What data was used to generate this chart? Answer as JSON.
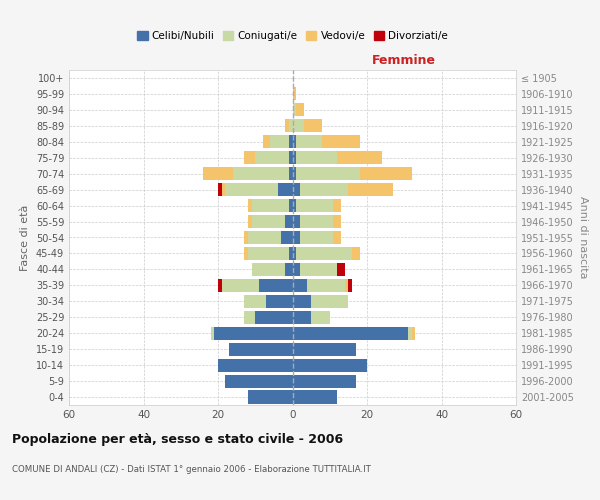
{
  "age_groups": [
    "0-4",
    "5-9",
    "10-14",
    "15-19",
    "20-24",
    "25-29",
    "30-34",
    "35-39",
    "40-44",
    "45-49",
    "50-54",
    "55-59",
    "60-64",
    "65-69",
    "70-74",
    "75-79",
    "80-84",
    "85-89",
    "90-94",
    "95-99",
    "100+"
  ],
  "birth_years": [
    "2001-2005",
    "1996-2000",
    "1991-1995",
    "1986-1990",
    "1981-1985",
    "1976-1980",
    "1971-1975",
    "1966-1970",
    "1961-1965",
    "1956-1960",
    "1951-1955",
    "1946-1950",
    "1941-1945",
    "1936-1940",
    "1931-1935",
    "1926-1930",
    "1921-1925",
    "1916-1920",
    "1911-1915",
    "1906-1910",
    "≤ 1905"
  ],
  "male": {
    "celibi": [
      12,
      18,
      20,
      17,
      21,
      10,
      7,
      9,
      2,
      1,
      3,
      2,
      1,
      4,
      1,
      1,
      1,
      0,
      0,
      0,
      0
    ],
    "coniugati": [
      0,
      0,
      0,
      0,
      1,
      3,
      6,
      10,
      9,
      11,
      9,
      9,
      10,
      14,
      15,
      9,
      5,
      1,
      0,
      0,
      0
    ],
    "vedovi": [
      0,
      0,
      0,
      0,
      0,
      0,
      0,
      0,
      0,
      1,
      1,
      1,
      1,
      1,
      8,
      3,
      2,
      1,
      0,
      0,
      0
    ],
    "divorziati": [
      0,
      0,
      0,
      0,
      0,
      0,
      0,
      1,
      0,
      0,
      0,
      0,
      0,
      1,
      0,
      0,
      0,
      0,
      0,
      0,
      0
    ]
  },
  "female": {
    "nubili": [
      12,
      17,
      20,
      17,
      31,
      5,
      5,
      4,
      2,
      1,
      2,
      2,
      1,
      2,
      1,
      1,
      1,
      0,
      0,
      0,
      0
    ],
    "coniugate": [
      0,
      0,
      0,
      0,
      1,
      5,
      10,
      10,
      10,
      15,
      9,
      9,
      10,
      13,
      17,
      11,
      7,
      3,
      1,
      0,
      0
    ],
    "vedove": [
      0,
      0,
      0,
      0,
      1,
      0,
      0,
      1,
      0,
      2,
      2,
      2,
      2,
      12,
      14,
      12,
      10,
      5,
      2,
      1,
      0
    ],
    "divorziate": [
      0,
      0,
      0,
      0,
      0,
      0,
      0,
      1,
      2,
      0,
      0,
      0,
      0,
      0,
      0,
      0,
      0,
      0,
      0,
      0,
      0
    ]
  },
  "colors": {
    "celibi_nubili": "#4472a8",
    "coniugati": "#c8d9a4",
    "vedovi": "#f5c46a",
    "divorziati": "#c0000b"
  },
  "title": "Popolazione per età, sesso e stato civile - 2006",
  "subtitle": "COMUNE DI ANDALI (CZ) - Dati ISTAT 1° gennaio 2006 - Elaborazione TUTTITALIA.IT",
  "xlabel_right": "Femmine",
  "ylabel_left": "Fasce di età",
  "ylabel_right": "Anni di nascita",
  "xlim": 60,
  "bg_color": "#f5f5f5",
  "plot_bg": "#ffffff",
  "grid_color": "#cccccc"
}
